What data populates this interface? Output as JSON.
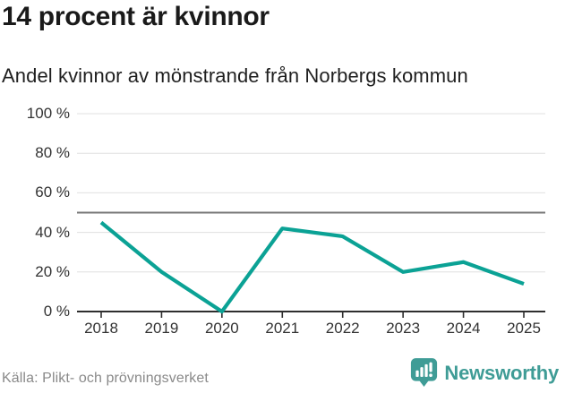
{
  "chart_data": {
    "type": "line",
    "title": "14 procent är kvinnor",
    "subtitle": "Andel kvinnor av mönstrande från Norbergs kommun",
    "categories": [
      "2018",
      "2019",
      "2020",
      "2021",
      "2022",
      "2023",
      "2024",
      "2025"
    ],
    "values": [
      45,
      20,
      0,
      42,
      38,
      20,
      25,
      14
    ],
    "ylim": [
      0,
      100
    ],
    "yticks": [
      0,
      20,
      40,
      60,
      80,
      100
    ],
    "ytick_labels": [
      "0 %",
      "20 %",
      "40 %",
      "60 %",
      "80 %",
      "100 %"
    ],
    "reference_line": 50,
    "grid": true,
    "legend_position": "none",
    "line_color": "#0ba295",
    "gridline_color": "#e0e0e0",
    "reference_line_color": "#777777",
    "axis_color": "#2e2e2e"
  },
  "footer": {
    "source": "Källa: Plikt- och prövningsverket",
    "brand": "Newsworthy",
    "brand_color": "#3f9c96",
    "brand_icon": "speech-bubble-bar-chart-icon"
  }
}
